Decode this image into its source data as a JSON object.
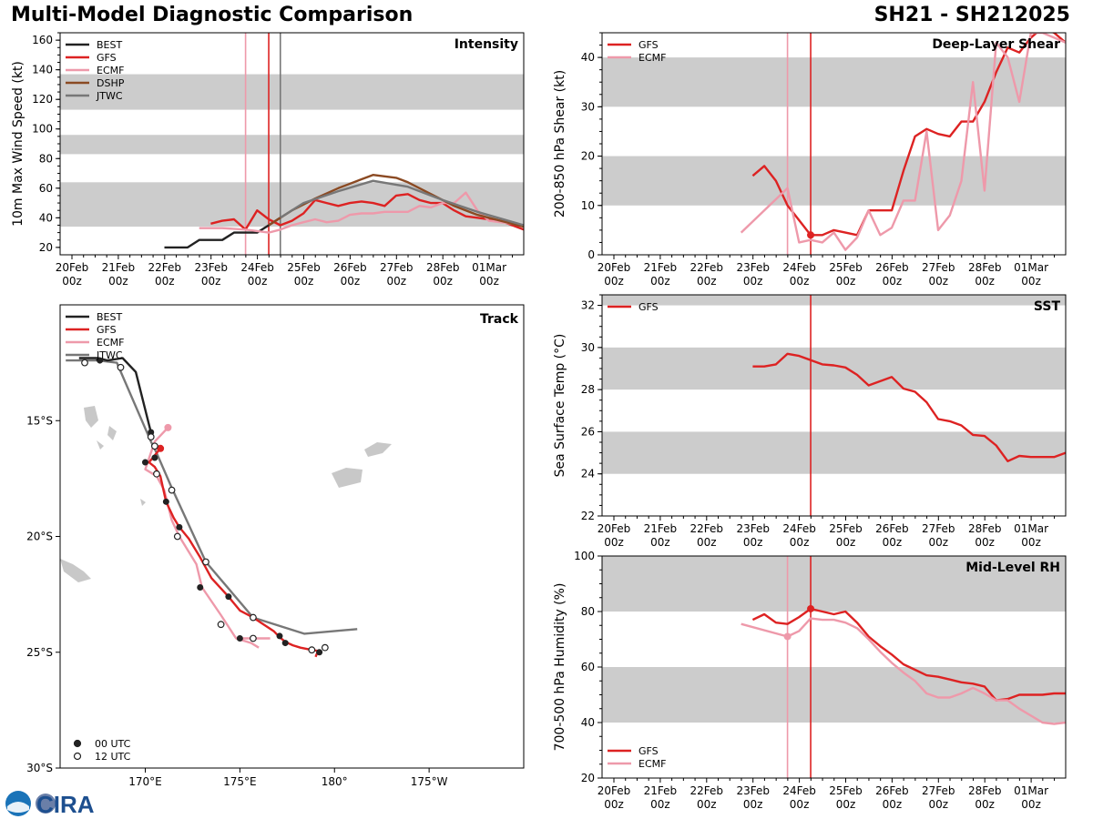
{
  "header": {
    "title": "Multi-Model Diagnostic Comparison",
    "storm_id": "SH21 - SH212025"
  },
  "logo_text": "CIRA",
  "colors": {
    "BEST": "#222222",
    "GFS": "#dd2222",
    "ECMF": "#ee99aa",
    "DSHP": "#8b4a23",
    "JTWC": "#777777",
    "band": "#cccccc"
  },
  "time_ticks": [
    "20Feb\n00z",
    "21Feb\n00z",
    "22Feb\n00z",
    "23Feb\n00z",
    "24Feb\n00z",
    "25Feb\n00z",
    "26Feb\n00z",
    "27Feb\n00z",
    "28Feb\n00z",
    "01Mar\n00z"
  ],
  "chart_data": [
    {
      "panel": "intensity",
      "type": "line",
      "label": "Intensity",
      "ylabel": "10m Max Wind Speed (kt)",
      "xlim_days": [
        -0.2,
        9.8
      ],
      "ylim": [
        15,
        165
      ],
      "yticks": [
        20,
        40,
        60,
        80,
        100,
        120,
        140,
        160
      ],
      "bands": [
        [
          34,
          64
        ],
        [
          83,
          96
        ],
        [
          113,
          137
        ]
      ],
      "vlines": [
        {
          "x": 4.0,
          "series": "ECMF"
        },
        {
          "x": 4.5,
          "series": "GFS"
        },
        {
          "x": 4.75,
          "series": "JTWC"
        }
      ],
      "legend": [
        "BEST",
        "GFS",
        "ECMF",
        "DSHP",
        "JTWC"
      ],
      "series": [
        {
          "name": "BEST",
          "x": [
            2.25,
            2.75,
            3.0,
            3.5,
            3.75,
            4.25,
            4.5,
            4.75
          ],
          "y": [
            20,
            20,
            25,
            25,
            30,
            30,
            35,
            40
          ]
        },
        {
          "name": "GFS",
          "x": [
            3.25,
            3.5,
            3.75,
            4.0,
            4.25,
            4.5,
            4.75,
            5.0,
            5.25,
            5.5,
            5.75,
            6.0,
            6.25,
            6.5,
            6.75,
            7.0,
            7.25,
            7.5,
            7.75,
            8.0,
            8.25,
            8.5,
            8.75,
            9.0,
            9.25,
            9.5,
            9.75,
            10.0
          ],
          "y": [
            36,
            38,
            39,
            32,
            45,
            39,
            35,
            38,
            43,
            52,
            50,
            48,
            50,
            51,
            50,
            48,
            55,
            56,
            52,
            50,
            50,
            45,
            41,
            40,
            39,
            38,
            35,
            32
          ]
        },
        {
          "name": "ECMF",
          "x": [
            3.0,
            3.5,
            4.0,
            4.5,
            4.75,
            5.0,
            5.25,
            5.5,
            5.75,
            6.0,
            6.25,
            6.5,
            6.75,
            7.0,
            7.25,
            7.5,
            7.75,
            8.0,
            8.25,
            8.5,
            8.75,
            9.0,
            9.25,
            9.5,
            9.75,
            10.0
          ],
          "y": [
            33,
            33,
            32,
            30,
            32,
            35,
            37,
            39,
            37,
            38,
            42,
            43,
            43,
            44,
            44,
            44,
            48,
            47,
            50,
            50,
            57,
            45,
            38,
            37,
            36,
            35
          ]
        },
        {
          "name": "DSHP",
          "x": [
            4.5,
            5.0,
            5.5,
            6.0,
            6.5,
            6.75,
            7.0,
            7.25,
            7.5,
            8.0,
            8.5,
            9.0,
            9.5,
            10.0
          ],
          "y": [
            35,
            45,
            53,
            60,
            66,
            69,
            68,
            67,
            64,
            56,
            48,
            42,
            38,
            34
          ]
        },
        {
          "name": "JTWC",
          "x": [
            4.75,
            5.25,
            6.0,
            6.75,
            7.5,
            8.25,
            9.0,
            10.0
          ],
          "y": [
            40,
            50,
            58,
            65,
            61,
            52,
            44,
            35
          ]
        }
      ]
    },
    {
      "panel": "shear",
      "type": "line",
      "label": "Deep-Layer Shear",
      "ylabel": "200-850 hPa Shear (kt)",
      "xlim_days": [
        -0.2,
        9.8
      ],
      "ylim": [
        0,
        45
      ],
      "yticks": [
        0,
        10,
        20,
        30,
        40
      ],
      "bands": [
        [
          10,
          20
        ],
        [
          30,
          40
        ]
      ],
      "vlines": [
        {
          "x": 4.0,
          "series": "ECMF"
        },
        {
          "x": 4.5,
          "series": "GFS"
        }
      ],
      "markers": [
        {
          "x": 4.5,
          "y": 4,
          "series": "GFS"
        }
      ],
      "legend": [
        "GFS",
        "ECMF"
      ],
      "series": [
        {
          "name": "GFS",
          "x": [
            3.25,
            3.5,
            3.75,
            4.0,
            4.25,
            4.5,
            4.75,
            5.0,
            5.25,
            5.5,
            5.75,
            6.0,
            6.25,
            6.5,
            6.75,
            7.0,
            7.25,
            7.5,
            7.75,
            8.0,
            8.25,
            8.5,
            8.75,
            9.0,
            9.25,
            9.5,
            9.75,
            10.0
          ],
          "y": [
            16,
            18,
            15,
            10,
            7,
            4,
            4,
            5,
            4.5,
            4,
            9,
            9,
            9,
            17,
            24,
            25.5,
            24.5,
            24,
            27,
            27,
            31,
            37,
            42,
            41,
            44,
            46,
            45,
            43
          ]
        },
        {
          "name": "ECMF",
          "x": [
            3.0,
            4.0,
            4.25,
            4.5,
            4.75,
            5.0,
            5.25,
            5.5,
            5.75,
            6.0,
            6.25,
            6.5,
            6.75,
            7.0,
            7.25,
            7.5,
            7.75,
            8.0,
            8.25,
            8.5,
            8.75,
            9.0,
            9.25,
            9.5,
            9.75,
            10.0
          ],
          "y": [
            4.5,
            13.5,
            2.5,
            3,
            2.5,
            4.5,
            1,
            3.5,
            9,
            4,
            5.5,
            11,
            11,
            25,
            5,
            8,
            15,
            35,
            13,
            43,
            40,
            31,
            45,
            45,
            44,
            43
          ]
        }
      ]
    },
    {
      "panel": "sst",
      "type": "line",
      "label": "SST",
      "ylabel": "Sea Surface Temp (°C)",
      "xlim_days": [
        -0.2,
        9.8
      ],
      "ylim": [
        22,
        32.5
      ],
      "yticks": [
        22,
        24,
        26,
        28,
        30,
        32
      ],
      "bands": [
        [
          24,
          26
        ],
        [
          28,
          30
        ],
        [
          32,
          34
        ]
      ],
      "vlines": [
        {
          "x": 4.5,
          "series": "GFS"
        }
      ],
      "legend": [
        "GFS"
      ],
      "series": [
        {
          "name": "GFS",
          "x": [
            3.25,
            3.5,
            3.75,
            4.0,
            4.25,
            4.5,
            4.75,
            5.0,
            5.25,
            5.5,
            5.75,
            6.0,
            6.25,
            6.5,
            6.75,
            7.0,
            7.25,
            7.5,
            7.75,
            8.0,
            8.25,
            8.5,
            8.75,
            9.0,
            9.25,
            9.5,
            9.75,
            10.0
          ],
          "y": [
            29.1,
            29.1,
            29.2,
            29.7,
            29.6,
            29.4,
            29.2,
            29.15,
            29.05,
            28.7,
            28.2,
            28.4,
            28.6,
            28.05,
            27.9,
            27.4,
            26.6,
            26.5,
            26.3,
            25.85,
            25.8,
            25.35,
            24.6,
            24.85,
            24.8,
            24.8,
            24.8,
            25.0
          ]
        }
      ]
    },
    {
      "panel": "rh",
      "type": "line",
      "label": "Mid-Level RH",
      "ylabel": "700-500 hPa Humidity (%)",
      "xlim_days": [
        -0.2,
        9.8
      ],
      "ylim": [
        20,
        100
      ],
      "yticks": [
        20,
        40,
        60,
        80,
        100
      ],
      "bands": [
        [
          40,
          60
        ],
        [
          80,
          100
        ]
      ],
      "vlines": [
        {
          "x": 4.0,
          "series": "ECMF"
        },
        {
          "x": 4.5,
          "series": "GFS"
        }
      ],
      "markers": [
        {
          "x": 4.0,
          "y": 71,
          "series": "ECMF"
        },
        {
          "x": 4.5,
          "y": 81,
          "series": "GFS"
        }
      ],
      "legend": [
        "GFS",
        "ECMF"
      ],
      "legend_loc": "lower-left",
      "series": [
        {
          "name": "GFS",
          "x": [
            3.25,
            3.5,
            3.75,
            4.0,
            4.25,
            4.5,
            4.75,
            5.0,
            5.25,
            5.5,
            5.75,
            6.0,
            6.25,
            6.5,
            6.75,
            7.0,
            7.25,
            7.5,
            7.75,
            8.0,
            8.25,
            8.5,
            8.75,
            9.0,
            9.25,
            9.5,
            9.75,
            10.0
          ],
          "y": [
            77,
            79,
            76,
            75.5,
            78,
            81,
            80,
            79,
            80,
            76,
            71,
            67.5,
            64.5,
            61,
            59,
            57,
            56.5,
            55.5,
            54.5,
            54,
            53,
            48,
            48.5,
            50,
            50,
            50,
            50.5,
            50.5
          ]
        },
        {
          "name": "ECMF",
          "x": [
            3.0,
            4.0,
            4.25,
            4.5,
            4.75,
            5.0,
            5.25,
            5.5,
            5.75,
            6.0,
            6.25,
            6.5,
            6.75,
            7.0,
            7.25,
            7.5,
            7.75,
            8.0,
            8.25,
            8.5,
            8.75,
            9.0,
            9.25,
            9.5,
            9.75,
            10.0
          ],
          "y": [
            75.5,
            71,
            73,
            77.5,
            77,
            77,
            76,
            74,
            70,
            65.5,
            61.5,
            58,
            55,
            50.5,
            49,
            49,
            50.5,
            52.5,
            50.5,
            48,
            48,
            45,
            42.5,
            40,
            39.5,
            40
          ]
        }
      ]
    },
    {
      "panel": "track",
      "type": "line",
      "label": "Track",
      "lon_ticks": [
        "170°E",
        "175°E",
        "180°",
        "175°W"
      ],
      "lat_ticks": [
        "15°S",
        "20°S",
        "25°S",
        "30°S"
      ],
      "lon_range": [
        165.5,
        190.0
      ],
      "lat_range": [
        -10.0,
        -30.0
      ],
      "legend": [
        "BEST",
        "GFS",
        "ECMF",
        "JTWC"
      ],
      "marker_legend": [
        "00 UTC",
        "12 UTC"
      ],
      "series": [
        {
          "name": "BEST",
          "lon": [
            166.5,
            167.5,
            168.0,
            168.8,
            169.5,
            170.3
          ],
          "lat": [
            -12.3,
            -12.3,
            -12.4,
            -12.3,
            -12.9,
            -15.5
          ]
        },
        {
          "name": "GFS",
          "lon": [
            170.8,
            170.5,
            170.2,
            170.5,
            170.8,
            171.1,
            171.5,
            171.8,
            172.3,
            172.9,
            173.5,
            174.4,
            175.0,
            175.7,
            176.8,
            177.1,
            177.4,
            177.8,
            178.2,
            178.8,
            179.2,
            179.1,
            179.0
          ],
          "lat": [
            -16.2,
            -16.5,
            -16.8,
            -17.0,
            -17.4,
            -18.5,
            -19.2,
            -19.6,
            -20.1,
            -20.9,
            -21.8,
            -22.6,
            -23.2,
            -23.5,
            -24.1,
            -24.35,
            -24.55,
            -24.7,
            -24.8,
            -24.9,
            -24.95,
            -25.0,
            -25.2
          ]
        },
        {
          "name": "ECMF",
          "lon": [
            171.2,
            170.5,
            170.0,
            170.6,
            171.0,
            171.4,
            171.8,
            172.7,
            173.0,
            174.0,
            174.8,
            175.6,
            176.0
          ],
          "lat": [
            -15.3,
            -15.9,
            -17.1,
            -17.4,
            -18.0,
            -19.3,
            -20.0,
            -21.2,
            -22.2,
            -23.4,
            -24.4,
            -24.6,
            -24.8
          ]
        },
        {
          "name": "GFS-ext",
          "lon": [
            174.8,
            175.6,
            176.6
          ],
          "lat": [
            -24.4,
            -24.4,
            -24.4
          ]
        },
        {
          "name": "JTWC",
          "lon": [
            165.8,
            166.5,
            167.5,
            168.5,
            170.3,
            170.6,
            171.4,
            173.2,
            175.7,
            178.4,
            181.2
          ],
          "lat": [
            -12.4,
            -12.4,
            -12.4,
            -12.5,
            -15.9,
            -16.4,
            -17.9,
            -21.1,
            -23.5,
            -24.2,
            -24.0
          ]
        }
      ],
      "points_00": [
        [
          167.6,
          -12.4
        ],
        [
          170.3,
          -15.5
        ],
        [
          170.0,
          -16.8
        ],
        [
          170.5,
          -16.6
        ],
        [
          171.1,
          -18.5
        ],
        [
          171.8,
          -19.6
        ],
        [
          172.9,
          -22.2
        ],
        [
          174.4,
          -22.6
        ],
        [
          175.0,
          -24.4
        ],
        [
          177.1,
          -24.3
        ],
        [
          177.4,
          -24.6
        ],
        [
          179.2,
          -25.0
        ]
      ],
      "points_12": [
        [
          166.8,
          -12.5
        ],
        [
          168.7,
          -12.7
        ],
        [
          170.3,
          -15.7
        ],
        [
          170.5,
          -16.1
        ],
        [
          170.6,
          -17.3
        ],
        [
          171.4,
          -18.0
        ],
        [
          171.7,
          -20.0
        ],
        [
          173.2,
          -21.1
        ],
        [
          174.0,
          -23.8
        ],
        [
          175.7,
          -23.5
        ],
        [
          175.7,
          -24.4
        ],
        [
          178.8,
          -24.9
        ],
        [
          179.5,
          -24.8
        ]
      ]
    }
  ]
}
